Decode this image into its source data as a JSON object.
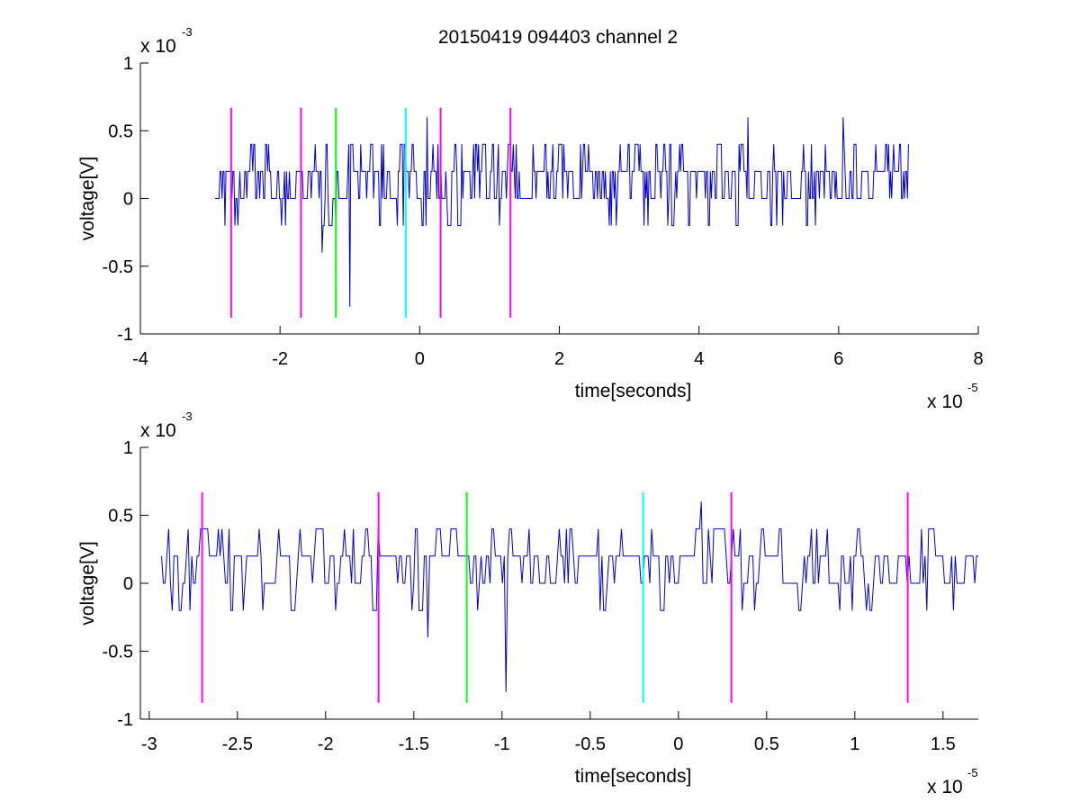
{
  "figure": {
    "title": "20150419 094403 channel 2"
  },
  "chart_data": [
    {
      "type": "line",
      "title": "20150419 094403 channel 2",
      "xlabel": "time[seconds]",
      "ylabel": "voltage[V]",
      "x_multiplier_label": "x 10",
      "x_multiplier_exponent": "-5",
      "y_multiplier_label": "x 10",
      "y_multiplier_exponent": "-3",
      "xlim": [
        -4,
        8
      ],
      "ylim": [
        -1,
        1
      ],
      "x_ticks": [
        -4,
        -2,
        0,
        2,
        4,
        6,
        8
      ],
      "x_tick_labels": [
        "-4",
        "-2",
        "0",
        "2",
        "4",
        "6",
        "8"
      ],
      "y_ticks": [
        1,
        0.5,
        0,
        -0.5,
        -1
      ],
      "y_tick_labels": [
        "1",
        "0.5",
        "0",
        "-0.5",
        "-1"
      ],
      "grid": false,
      "signal": {
        "color": "#0000cc",
        "x_start": -2.93,
        "x_end": 7.0,
        "levels": [
          -0.2,
          0,
          0.2,
          0.4
        ],
        "spikes": [
          {
            "x": -1.4,
            "y": -0.4
          },
          {
            "x": -1.0,
            "y": -0.8
          },
          {
            "x": -1.2,
            "y": -0.2
          },
          {
            "x": 0.1,
            "y": 0.6
          },
          {
            "x": 4.7,
            "y": 0.6
          },
          {
            "x": 6.07,
            "y": 0.6
          }
        ]
      },
      "markers": [
        {
          "x": -2.7,
          "color": "#ff00ff",
          "y_range": [
            -0.88,
            0.67
          ]
        },
        {
          "x": -1.7,
          "color": "#ff00ff",
          "y_range": [
            -0.88,
            0.67
          ]
        },
        {
          "x": -1.2,
          "color": "#00ff00",
          "y_range": [
            -0.88,
            0.67
          ]
        },
        {
          "x": -0.2,
          "color": "#00ffff",
          "y_range": [
            -0.88,
            0.67
          ]
        },
        {
          "x": 0.3,
          "color": "#ff00ff",
          "y_range": [
            -0.88,
            0.67
          ]
        },
        {
          "x": 1.3,
          "color": "#ff00ff",
          "y_range": [
            -0.88,
            0.67
          ]
        }
      ]
    },
    {
      "type": "line",
      "title": "",
      "xlabel": "time[seconds]",
      "ylabel": "voltage[V]",
      "x_multiplier_label": "x 10",
      "x_multiplier_exponent": "-5",
      "y_multiplier_label": "x 10",
      "y_multiplier_exponent": "-3",
      "xlim": [
        -3.05,
        1.7
      ],
      "ylim": [
        -1,
        1
      ],
      "x_ticks": [
        -3,
        -2.5,
        -2,
        -1.5,
        -1,
        -0.5,
        0,
        0.5,
        1,
        1.5
      ],
      "x_tick_labels": [
        "-3",
        "-2.5",
        "-2",
        "-1.5",
        "-1",
        "-0.5",
        "0",
        "0.5",
        "1",
        "1.5"
      ],
      "y_ticks": [
        1,
        0.5,
        0,
        -0.5,
        -1
      ],
      "y_tick_labels": [
        "1",
        "0.5",
        "0",
        "-0.5",
        "-1"
      ],
      "grid": false,
      "signal": {
        "color": "#0000cc",
        "x_start": -2.93,
        "x_end": 1.7,
        "levels": [
          -0.2,
          0,
          0.2,
          0.4
        ],
        "spikes": [
          {
            "x": -1.42,
            "y": -0.4
          },
          {
            "x": -0.98,
            "y": -0.8
          },
          {
            "x": 0.13,
            "y": 0.6
          }
        ]
      },
      "markers": [
        {
          "x": -2.7,
          "color": "#ff00ff",
          "y_range": [
            -0.88,
            0.67
          ]
        },
        {
          "x": -1.7,
          "color": "#ff00ff",
          "y_range": [
            -0.88,
            0.67
          ]
        },
        {
          "x": -1.2,
          "color": "#00ff00",
          "y_range": [
            -0.88,
            0.67
          ]
        },
        {
          "x": -0.2,
          "color": "#00ffff",
          "y_range": [
            -0.88,
            0.67
          ]
        },
        {
          "x": 0.3,
          "color": "#ff00ff",
          "y_range": [
            -0.88,
            0.67
          ]
        },
        {
          "x": 1.3,
          "color": "#ff00ff",
          "y_range": [
            -0.88,
            0.67
          ]
        }
      ]
    }
  ]
}
